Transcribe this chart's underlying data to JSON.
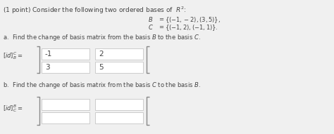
{
  "bg_color": "#f0f0f0",
  "title_text": "(1 point) Consider the following two ordered bases of  $R^2$:",
  "part_a_text": "a.  Find the change of basis matrix from the basis $B$ to the basis $C$.",
  "part_b_text": "b.  Find the change of basis matrix from the basis $C$ to the basis $B$.",
  "lida_label": "$[id]^C_B =$",
  "lidb_label": "$[id]^B_C =$",
  "matrix_a_values": [
    "-1",
    "2",
    "3",
    "5"
  ],
  "box_fill": "#ffffff",
  "box_edge": "#bbbbbb",
  "text_color": "#444444",
  "font_size_title": 6.5,
  "font_size_body": 6.0,
  "font_size_matrix": 7.5,
  "bracket_color": "#888888"
}
